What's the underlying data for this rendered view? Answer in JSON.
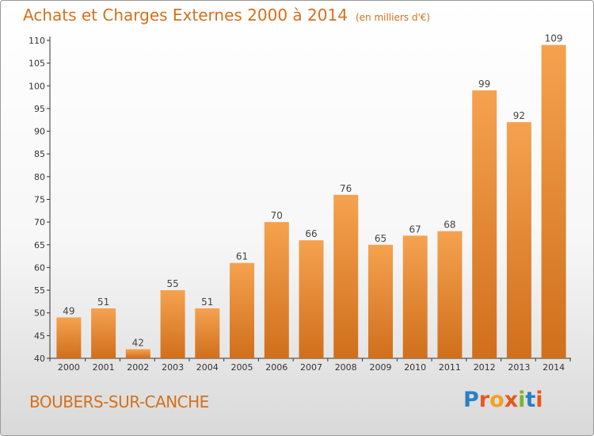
{
  "colors": {
    "accent": "#d4701c",
    "bar_top": "#f5a24f",
    "bar_bottom": "#d06f1c",
    "logo": [
      "#2a7fc4",
      "#e8571e",
      "#f1a11d",
      "#e8571e",
      "#7ab530",
      "#2a7fc4",
      "#e8571e"
    ]
  },
  "chart_data": {
    "type": "bar",
    "title": "Achats et Charges Externes 2000 à 2014",
    "unit": "(en milliers d'€)",
    "categories": [
      "2000",
      "2001",
      "2002",
      "2003",
      "2004",
      "2005",
      "2006",
      "2007",
      "2008",
      "2009",
      "2010",
      "2011",
      "2012",
      "2013",
      "2014"
    ],
    "values": [
      49,
      51,
      42,
      55,
      51,
      61,
      70,
      66,
      76,
      65,
      67,
      68,
      99,
      92,
      109
    ],
    "ylim": [
      40,
      110
    ],
    "yticks": [
      40,
      45,
      50,
      55,
      60,
      65,
      70,
      75,
      80,
      85,
      90,
      95,
      100,
      105,
      110
    ],
    "grid": false,
    "legend": "none",
    "xlabel": "",
    "ylabel": ""
  },
  "footer": {
    "place": "BOUBERS-SUR-CANCHE",
    "brand": "Proxiti",
    "brand_letters": [
      "P",
      "r",
      "o",
      "x",
      "i",
      "t",
      "i"
    ]
  }
}
